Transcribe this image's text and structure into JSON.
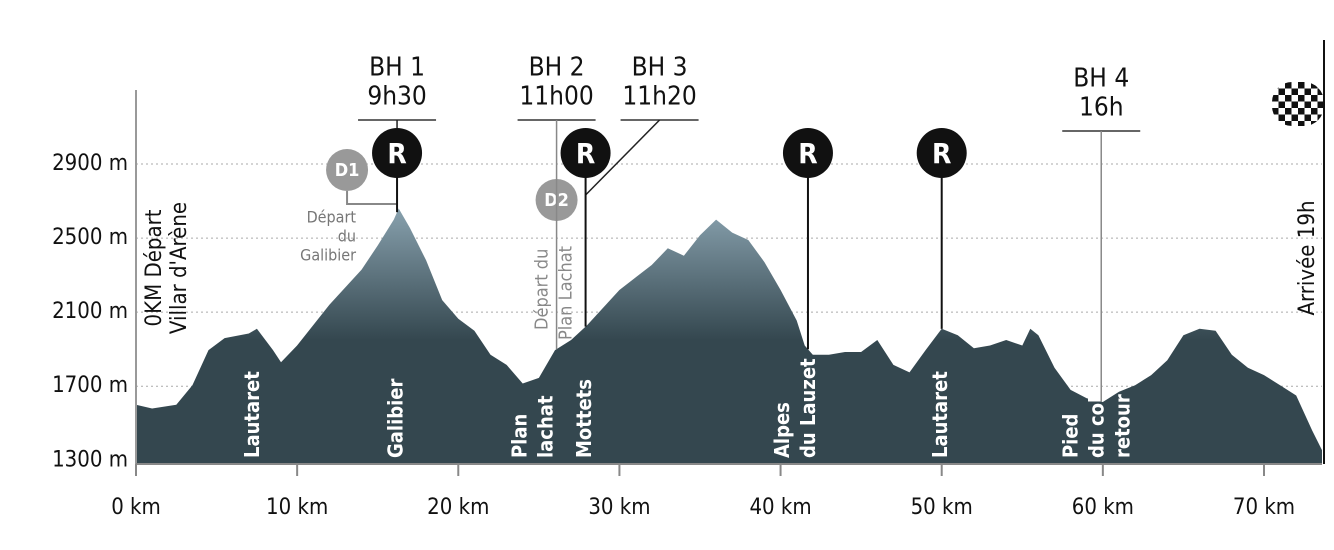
{
  "chart_data": {
    "type": "area",
    "x": [
      0,
      1,
      2.5,
      3.5,
      4.5,
      5.5,
      7,
      7.5,
      8.5,
      9,
      10,
      12,
      14,
      15,
      16,
      16.3,
      17,
      18,
      19,
      20,
      21,
      22,
      23,
      24,
      25,
      26,
      27,
      28,
      30,
      32,
      33,
      34,
      35,
      36,
      37,
      38,
      39,
      40,
      41,
      41.5,
      42,
      43,
      44,
      45,
      46,
      47,
      48,
      49,
      50,
      51,
      52,
      53,
      54,
      55,
      55.5,
      56,
      57,
      58,
      59,
      60,
      61,
      62,
      63,
      64,
      65,
      66,
      67,
      68,
      69,
      70,
      71,
      72,
      73,
      73.6
    ],
    "values": [
      1600,
      1580,
      1600,
      1705,
      1895,
      1960,
      1985,
      2010,
      1895,
      1830,
      1920,
      2140,
      2330,
      2460,
      2600,
      2660,
      2555,
      2380,
      2165,
      2065,
      2000,
      1870,
      1815,
      1715,
      1745,
      1895,
      1950,
      2030,
      2220,
      2355,
      2445,
      2405,
      2515,
      2600,
      2530,
      2490,
      2370,
      2220,
      2055,
      1920,
      1870,
      1870,
      1885,
      1885,
      1950,
      1815,
      1775,
      1895,
      2010,
      1975,
      1905,
      1920,
      1950,
      1920,
      2010,
      1975,
      1800,
      1680,
      1635,
      1615,
      1670,
      1705,
      1760,
      1840,
      1975,
      2010,
      2000,
      1870,
      1800,
      1760,
      1705,
      1650,
      1460,
      1355
    ],
    "colors": [
      "#8aa3b0",
      "#34474f"
    ],
    "xlim": [
      0,
      73.6
    ],
    "ylim": [
      1280,
      3300
    ],
    "xticks": [
      {
        "value": 0,
        "label": "0 km"
      },
      {
        "value": 10,
        "label": "10 km"
      },
      {
        "value": 20,
        "label": "20 km"
      },
      {
        "value": 30,
        "label": "30 km"
      },
      {
        "value": 40,
        "label": "40 km"
      },
      {
        "value": 50,
        "label": "50 km"
      },
      {
        "value": 60,
        "label": "60 km"
      },
      {
        "value": 70,
        "label": "70 km"
      }
    ],
    "yticks": [
      {
        "value": 1300,
        "label": "1300 m"
      },
      {
        "value": 1700,
        "label": "1700 m"
      },
      {
        "value": 2100,
        "label": "2100 m"
      },
      {
        "value": 2500,
        "label": "2500 m"
      },
      {
        "value": 2900,
        "label": "2900 m"
      }
    ],
    "grid": true,
    "start_label": [
      "0KM Départ",
      "Villar d'Arène"
    ],
    "finish_label": "Arrivée 19h",
    "places": [
      {
        "x": 7.3,
        "lines": [
          "Lautaret"
        ]
      },
      {
        "x": 16.2,
        "lines": [
          "Galibier"
        ]
      },
      {
        "x": 24.7,
        "lines": [
          "Plan",
          "lachat"
        ]
      },
      {
        "x": 27.9,
        "lines": [
          "Mottets"
        ]
      },
      {
        "x": 41.0,
        "lines": [
          "Alpes",
          "du Lauzet"
        ]
      },
      {
        "x": 50.0,
        "lines": [
          "Lautaret"
        ]
      },
      {
        "x": 59.7,
        "lines": [
          "Pied",
          "du col",
          "retour"
        ]
      }
    ],
    "refuels": [
      {
        "x": 16.2,
        "label": "R"
      },
      {
        "x": 27.9,
        "label": "R"
      },
      {
        "x": 41.7,
        "label": "R"
      },
      {
        "x": 50.0,
        "label": "R"
      }
    ],
    "checkpoints": [
      {
        "x": 16.2,
        "name": "BH 1",
        "time": "9h30"
      },
      {
        "x": 26.1,
        "name": "BH 2",
        "time": "11h00"
      },
      {
        "x": 27.9,
        "name": "BH 3",
        "time": "11h20"
      },
      {
        "x": 59.9,
        "name": "BH 4",
        "time": "16h"
      }
    ],
    "departures": [
      {
        "x": 16.2,
        "label": "D1",
        "lines": [
          "Départ",
          "du",
          "Galibier"
        ]
      },
      {
        "x": 26.1,
        "label": "D2",
        "lines": [
          "Départ du",
          "Plan Lachat"
        ]
      }
    ]
  }
}
